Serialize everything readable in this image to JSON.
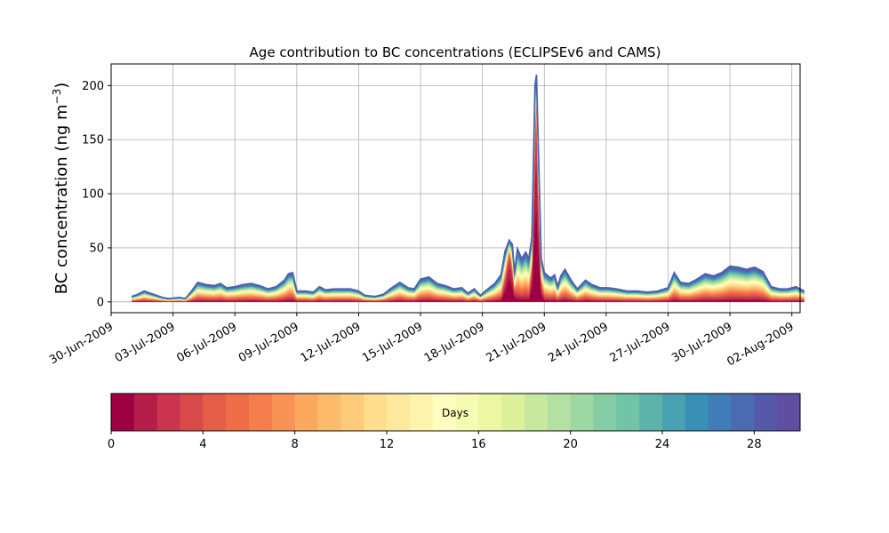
{
  "chart_data": {
    "type": "area",
    "title": "Age contribution to BC concentrations (ECLIPSEv6 and CAMS)",
    "ylabel_main": "BC concentration (ng m",
    "ylabel_exp": "−3",
    "ylabel_close": ")",
    "ylim": [
      -10,
      220
    ],
    "yticks": [
      0,
      50,
      100,
      150,
      200
    ],
    "x_start_day": 0,
    "xlim_days": [
      0,
      33.4
    ],
    "xticks": [
      {
        "day": 0,
        "label": "30-Jun-2009"
      },
      {
        "day": 3,
        "label": "03-Jul-2009"
      },
      {
        "day": 6,
        "label": "06-Jul-2009"
      },
      {
        "day": 9,
        "label": "09-Jul-2009"
      },
      {
        "day": 12,
        "label": "12-Jul-2009"
      },
      {
        "day": 15,
        "label": "15-Jul-2009"
      },
      {
        "day": 18,
        "label": "18-Jul-2009"
      },
      {
        "day": 21,
        "label": "21-Jul-2009"
      },
      {
        "day": 24,
        "label": "24-Jul-2009"
      },
      {
        "day": 27,
        "label": "27-Jul-2009"
      },
      {
        "day": 30,
        "label": "30-Jul-2009"
      },
      {
        "day": 33,
        "label": "02-Aug-2009"
      }
    ],
    "grid": true,
    "total_series": [
      [
        1.0,
        5
      ],
      [
        1.3,
        7
      ],
      [
        1.6,
        10
      ],
      [
        1.9,
        8
      ],
      [
        2.2,
        6
      ],
      [
        2.5,
        4
      ],
      [
        2.8,
        3
      ],
      [
        3.3,
        4
      ],
      [
        3.6,
        3
      ],
      [
        3.9,
        10
      ],
      [
        4.2,
        18
      ],
      [
        4.6,
        16
      ],
      [
        5.0,
        15
      ],
      [
        5.3,
        17
      ],
      [
        5.6,
        13
      ],
      [
        6.0,
        14
      ],
      [
        6.4,
        16
      ],
      [
        6.8,
        17
      ],
      [
        7.2,
        15
      ],
      [
        7.6,
        12
      ],
      [
        8.0,
        14
      ],
      [
        8.4,
        20
      ],
      [
        8.6,
        26
      ],
      [
        8.8,
        27
      ],
      [
        9.0,
        10
      ],
      [
        9.4,
        10
      ],
      [
        9.8,
        9
      ],
      [
        10.1,
        14
      ],
      [
        10.4,
        11
      ],
      [
        10.8,
        12
      ],
      [
        11.2,
        12
      ],
      [
        11.6,
        12
      ],
      [
        12.0,
        10
      ],
      [
        12.3,
        6
      ],
      [
        12.8,
        5
      ],
      [
        13.2,
        7
      ],
      [
        13.6,
        13
      ],
      [
        14.0,
        18
      ],
      [
        14.4,
        13
      ],
      [
        14.7,
        12
      ],
      [
        15.0,
        21
      ],
      [
        15.4,
        23
      ],
      [
        15.8,
        17
      ],
      [
        16.2,
        15
      ],
      [
        16.6,
        12
      ],
      [
        17.0,
        13
      ],
      [
        17.3,
        8
      ],
      [
        17.6,
        12
      ],
      [
        17.9,
        6
      ],
      [
        18.2,
        11
      ],
      [
        18.6,
        17
      ],
      [
        18.9,
        25
      ],
      [
        19.1,
        47
      ],
      [
        19.3,
        57
      ],
      [
        19.45,
        53
      ],
      [
        19.55,
        27
      ],
      [
        19.7,
        49
      ],
      [
        19.9,
        40
      ],
      [
        20.1,
        46
      ],
      [
        20.25,
        40
      ],
      [
        20.4,
        60
      ],
      [
        20.55,
        200
      ],
      [
        20.62,
        210
      ],
      [
        20.7,
        150
      ],
      [
        20.85,
        40
      ],
      [
        21.0,
        27
      ],
      [
        21.3,
        22
      ],
      [
        21.5,
        25
      ],
      [
        21.65,
        14
      ],
      [
        21.8,
        24
      ],
      [
        22.0,
        30
      ],
      [
        22.3,
        20
      ],
      [
        22.6,
        12
      ],
      [
        23.0,
        20
      ],
      [
        23.3,
        16
      ],
      [
        23.7,
        13
      ],
      [
        24.1,
        13
      ],
      [
        24.5,
        12
      ],
      [
        25.0,
        10
      ],
      [
        25.5,
        10
      ],
      [
        26.0,
        9
      ],
      [
        26.5,
        10
      ],
      [
        27.0,
        13
      ],
      [
        27.3,
        27
      ],
      [
        27.6,
        18
      ],
      [
        28.0,
        17
      ],
      [
        28.4,
        21
      ],
      [
        28.8,
        26
      ],
      [
        29.2,
        24
      ],
      [
        29.6,
        27
      ],
      [
        30.0,
        33
      ],
      [
        30.4,
        32
      ],
      [
        30.8,
        30
      ],
      [
        31.2,
        32
      ],
      [
        31.6,
        28
      ],
      [
        32.0,
        14
      ],
      [
        32.4,
        12
      ],
      [
        32.8,
        12
      ],
      [
        33.2,
        14
      ],
      [
        33.6,
        10
      ]
    ],
    "band_fractions": [
      0.06,
      0.05,
      0.05,
      0.05,
      0.05,
      0.04,
      0.04,
      0.04,
      0.04,
      0.04,
      0.04,
      0.035,
      0.035,
      0.03,
      0.03,
      0.03,
      0.03,
      0.03,
      0.03,
      0.03,
      0.03,
      0.03,
      0.03,
      0.03,
      0.03,
      0.03,
      0.03,
      0.03,
      0.03,
      0.03
    ],
    "spike_profile": [
      {
        "day": 19.3,
        "early": 0.75
      },
      {
        "day": 20.6,
        "early": 0.85
      }
    ],
    "colorbar": {
      "label": "Days",
      "ticks": [
        0,
        4,
        8,
        12,
        16,
        20,
        24,
        28
      ],
      "range": [
        0,
        30
      ],
      "colors": [
        "#9e0142",
        "#b41e48",
        "#ca344e",
        "#d84a4a",
        "#e55e48",
        "#ef6d46",
        "#f57e4e",
        "#f99355",
        "#fba95f",
        "#fdbb6c",
        "#fdcc7a",
        "#fedd8d",
        "#fee99e",
        "#fff4ae",
        "#fffebe",
        "#f6fbb2",
        "#ebf7a3",
        "#dcf09c",
        "#c7e89e",
        "#b3e0a3",
        "#9dd7a4",
        "#86cda5",
        "#71c4a5",
        "#5db3a9",
        "#4aa1b1",
        "#3a8fb7",
        "#3e7db8",
        "#4a6bb0",
        "#5659a9",
        "#5e4fa2"
      ]
    }
  }
}
